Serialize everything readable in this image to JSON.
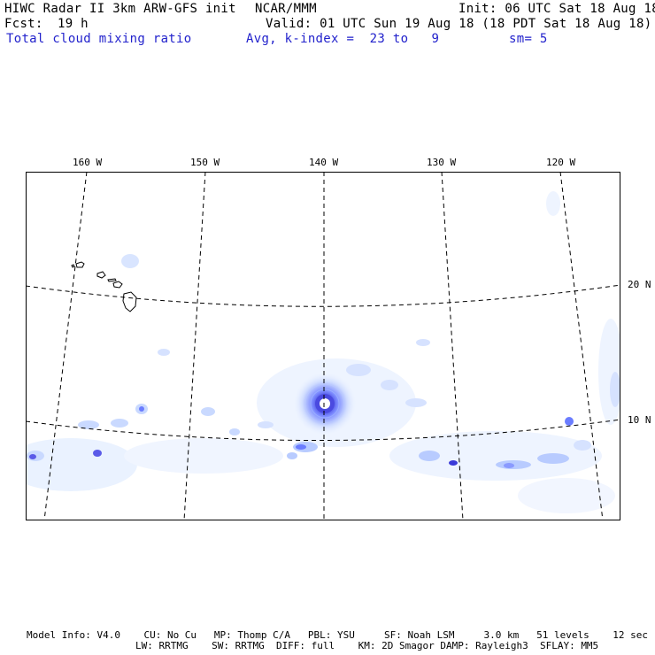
{
  "header": {
    "model_title": "HIWC Radar II 3km ARW-GFS init",
    "org": "NCAR/MMM",
    "init": "Init: 06 UTC Sat 18 Aug 18",
    "fcst_label": "Fcst:",
    "fcst_value": "19 h",
    "valid": "Valid: 01 UTC Sun 19 Aug 18 (18 PDT Sat 18 Aug 18)",
    "field_name": "Total cloud mixing ratio",
    "avg": "Avg, k-index =  23 to   9",
    "smooth": "sm= 5"
  },
  "map": {
    "lon_labels": [
      "160 W",
      "150 W",
      "140 W",
      "130 W",
      "120 W"
    ],
    "lat_labels": [
      "20 N",
      "10 N"
    ],
    "colors": {
      "frame": "#000000",
      "grid": "#000000",
      "cloud_light": "#eaf2ff",
      "cloud_mid": "#c9d9ff",
      "cloud_dark": "#6b7dff",
      "cloud_core": "#3a3ad8"
    }
  },
  "footer": {
    "line1": "Model Info: V4.0    CU: No Cu   MP: Thomp C/A   PBL: YSU     SF: Noah LSM     3.0 km   51 levels    12 sec",
    "line2": "LW: RRTMG    SW: RRTMG  DIFF: full    KM: 2D Smagor DAMP: Rayleigh3  SFLAY: MM5"
  }
}
